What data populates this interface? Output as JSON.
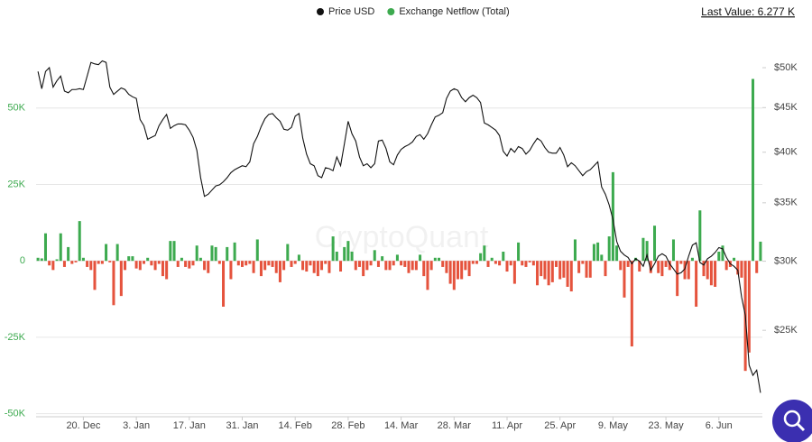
{
  "chart_data": {
    "type": "combo",
    "watermark": "CryptoQuant",
    "last_value_label": "Last Value: 6.277 K",
    "categories": [
      null,
      null,
      null,
      null,
      null,
      null,
      null,
      null,
      null,
      null,
      null,
      null,
      "20. Dec",
      null,
      null,
      null,
      null,
      null,
      null,
      null,
      null,
      null,
      null,
      null,
      null,
      null,
      "3. Jan",
      null,
      null,
      null,
      null,
      null,
      null,
      null,
      null,
      null,
      null,
      null,
      null,
      null,
      "17. Jan",
      null,
      null,
      null,
      null,
      null,
      null,
      null,
      null,
      null,
      null,
      null,
      null,
      null,
      "31. Jan",
      null,
      null,
      null,
      null,
      null,
      null,
      null,
      null,
      null,
      null,
      null,
      null,
      null,
      "14. Feb",
      null,
      null,
      null,
      null,
      null,
      null,
      null,
      null,
      null,
      null,
      null,
      null,
      null,
      "28. Feb",
      null,
      null,
      null,
      null,
      null,
      null,
      null,
      null,
      null,
      null,
      null,
      null,
      null,
      "14. Mar",
      null,
      null,
      null,
      null,
      null,
      null,
      null,
      null,
      null,
      null,
      null,
      null,
      null,
      "28. Mar",
      null,
      null,
      null,
      null,
      null,
      null,
      null,
      null,
      null,
      null,
      null,
      null,
      null,
      "11. Apr",
      null,
      null,
      null,
      null,
      null,
      null,
      null,
      null,
      null,
      null,
      null,
      null,
      null,
      "25. Apr",
      null,
      null,
      null,
      null,
      null,
      null,
      null,
      null,
      null,
      null,
      null,
      null,
      null,
      "9. May",
      null,
      null,
      null,
      null,
      null,
      null,
      null,
      null,
      null,
      null,
      null,
      null,
      null,
      "23. May",
      null,
      null,
      null,
      null,
      null,
      null,
      null,
      null,
      null,
      null,
      null,
      null,
      null,
      "6. Jun",
      null,
      null,
      null,
      null,
      null,
      null,
      null,
      null,
      null,
      null,
      null
    ],
    "series": [
      {
        "name": "Price USD",
        "type": "line",
        "axis": "y2",
        "color": "#111111",
        "values": [
          49500,
          47300,
          49500,
          50000,
          47500,
          48300,
          48900,
          47000,
          46800,
          47200,
          47200,
          47300,
          47200,
          48900,
          50700,
          50500,
          50400,
          50900,
          50700,
          47500,
          46600,
          47000,
          47400,
          47200,
          46600,
          46300,
          46100,
          43600,
          42900,
          41400,
          41600,
          41800,
          42900,
          43600,
          44200,
          42600,
          42900,
          43100,
          43100,
          43000,
          42400,
          41600,
          40200,
          37400,
          35600,
          35800,
          36200,
          36600,
          36700,
          37000,
          37400,
          37900,
          38200,
          38400,
          38600,
          38500,
          39000,
          40900,
          41700,
          42800,
          43700,
          44200,
          44300,
          43800,
          43400,
          42500,
          42400,
          42700,
          44000,
          44300,
          41500,
          39800,
          38800,
          38600,
          37600,
          37400,
          38400,
          38300,
          38100,
          39500,
          38600,
          40900,
          43400,
          42000,
          41200,
          39500,
          38600,
          38800,
          38400,
          38800,
          41200,
          41300,
          40400,
          39000,
          38700,
          39700,
          40300,
          40600,
          40800,
          41100,
          41700,
          41900,
          41400,
          42000,
          43000,
          43900,
          44100,
          44400,
          46100,
          47000,
          47300,
          47100,
          46200,
          45700,
          46200,
          46500,
          46200,
          45600,
          43200,
          43000,
          42700,
          42400,
          41800,
          40100,
          39600,
          40400,
          40000,
          40600,
          40400,
          39800,
          40200,
          40900,
          41500,
          41200,
          40500,
          40000,
          39900,
          39900,
          40500,
          39700,
          38500,
          38900,
          38600,
          38100,
          37600,
          38000,
          38200,
          38600,
          39000,
          36500,
          35800,
          34800,
          33500,
          31600,
          30800,
          30500,
          30300,
          29800,
          30200,
          30000,
          29600,
          30500,
          29300,
          29800,
          30400,
          30600,
          30400,
          29800,
          29400,
          29000,
          29100,
          29400,
          30400,
          31300,
          31500,
          29900,
          29700,
          30200,
          30400,
          30700,
          31100,
          31000,
          30300,
          29800,
          29600,
          29300,
          27300,
          26000,
          22800,
          22200,
          22500,
          21200
        ]
      },
      {
        "name": "Exchange Netflow (Total)",
        "type": "bar",
        "color": "#3daa4f",
        "negative_color": "#e5533d",
        "values": [
          1000,
          800,
          9000,
          -1500,
          -3000,
          500,
          9000,
          -2000,
          4500,
          -1000,
          -500,
          13000,
          1000,
          -2000,
          -3000,
          -9500,
          -1000,
          -1000,
          5500,
          -500,
          -14500,
          5500,
          -11500,
          -3000,
          1500,
          1500,
          -2500,
          -3000,
          -1000,
          1000,
          -1500,
          -3000,
          -1000,
          -5000,
          -6000,
          6500,
          6500,
          -2000,
          1000,
          -2000,
          -2500,
          -1500,
          5000,
          1000,
          -3000,
          -4000,
          5000,
          4500,
          -1000,
          -15000,
          4500,
          -6000,
          6000,
          -1500,
          -2000,
          -1500,
          -1000,
          -4000,
          7000,
          -5000,
          -3000,
          -1500,
          -2000,
          -4000,
          -7000,
          -3000,
          5500,
          -2000,
          -1000,
          2000,
          -3000,
          -3500,
          -1500,
          -4000,
          -5000,
          -3000,
          -1000,
          -4000,
          8000,
          3000,
          -3500,
          4500,
          6500,
          3000,
          -3000,
          -2000,
          -5000,
          -3000,
          -1500,
          3500,
          -2000,
          1500,
          -3000,
          -3000,
          -1500,
          2000,
          -1500,
          -2000,
          -4000,
          -3000,
          -3000,
          2000,
          -5000,
          -9500,
          -3000,
          1000,
          1000,
          -2000,
          -4000,
          -7500,
          -9500,
          -6000,
          -6000,
          -3000,
          -5000,
          -1000,
          -1000,
          2500,
          5000,
          -2000,
          1000,
          -1000,
          -1500,
          3000,
          -3500,
          -1500,
          -7500,
          6000,
          -1500,
          -2000,
          -500,
          -1500,
          -8000,
          -5000,
          -6000,
          -8000,
          -7000,
          -2000,
          -6000,
          -5500,
          -8500,
          -10000,
          7000,
          -4000,
          -1000,
          -5500,
          -5500,
          5500,
          6000,
          2000,
          -5000,
          8000,
          29000,
          5000,
          -3000,
          -12000,
          -2000,
          -28000,
          1000,
          -3500,
          7500,
          6500,
          -4000,
          11500,
          -4000,
          -5000,
          -2000,
          -3000,
          7000,
          -11500,
          -1000,
          -6000,
          -6000,
          1000,
          -15000,
          16500,
          -5000,
          -6000,
          -8000,
          -8500,
          3000,
          5000,
          -3000,
          -2000,
          1000,
          -4500,
          -5500,
          -36000,
          -30000,
          59500,
          -4000,
          6277
        ]
      }
    ],
    "ylim": [
      -51000,
      75000
    ],
    "yticks": [
      {
        "value": -50000,
        "label": "-50K"
      },
      {
        "value": -25000,
        "label": "-25K"
      },
      0,
      {
        "value": 25000,
        "label": "25K"
      },
      {
        "value": 50000,
        "label": "50K"
      }
    ],
    "y2lim": [
      19900,
      55000
    ],
    "y2_log": true,
    "y2ticks": [
      {
        "value": 25000,
        "label": "$25K"
      },
      {
        "value": 30000,
        "label": "$30K"
      },
      {
        "value": 35000,
        "label": "$35K"
      },
      {
        "value": 40000,
        "label": "$40K"
      },
      {
        "value": 45000,
        "label": "$45K"
      },
      {
        "value": 50000,
        "label": "$50K"
      }
    ],
    "ytick_color": "#3daa4f",
    "grid": true
  }
}
